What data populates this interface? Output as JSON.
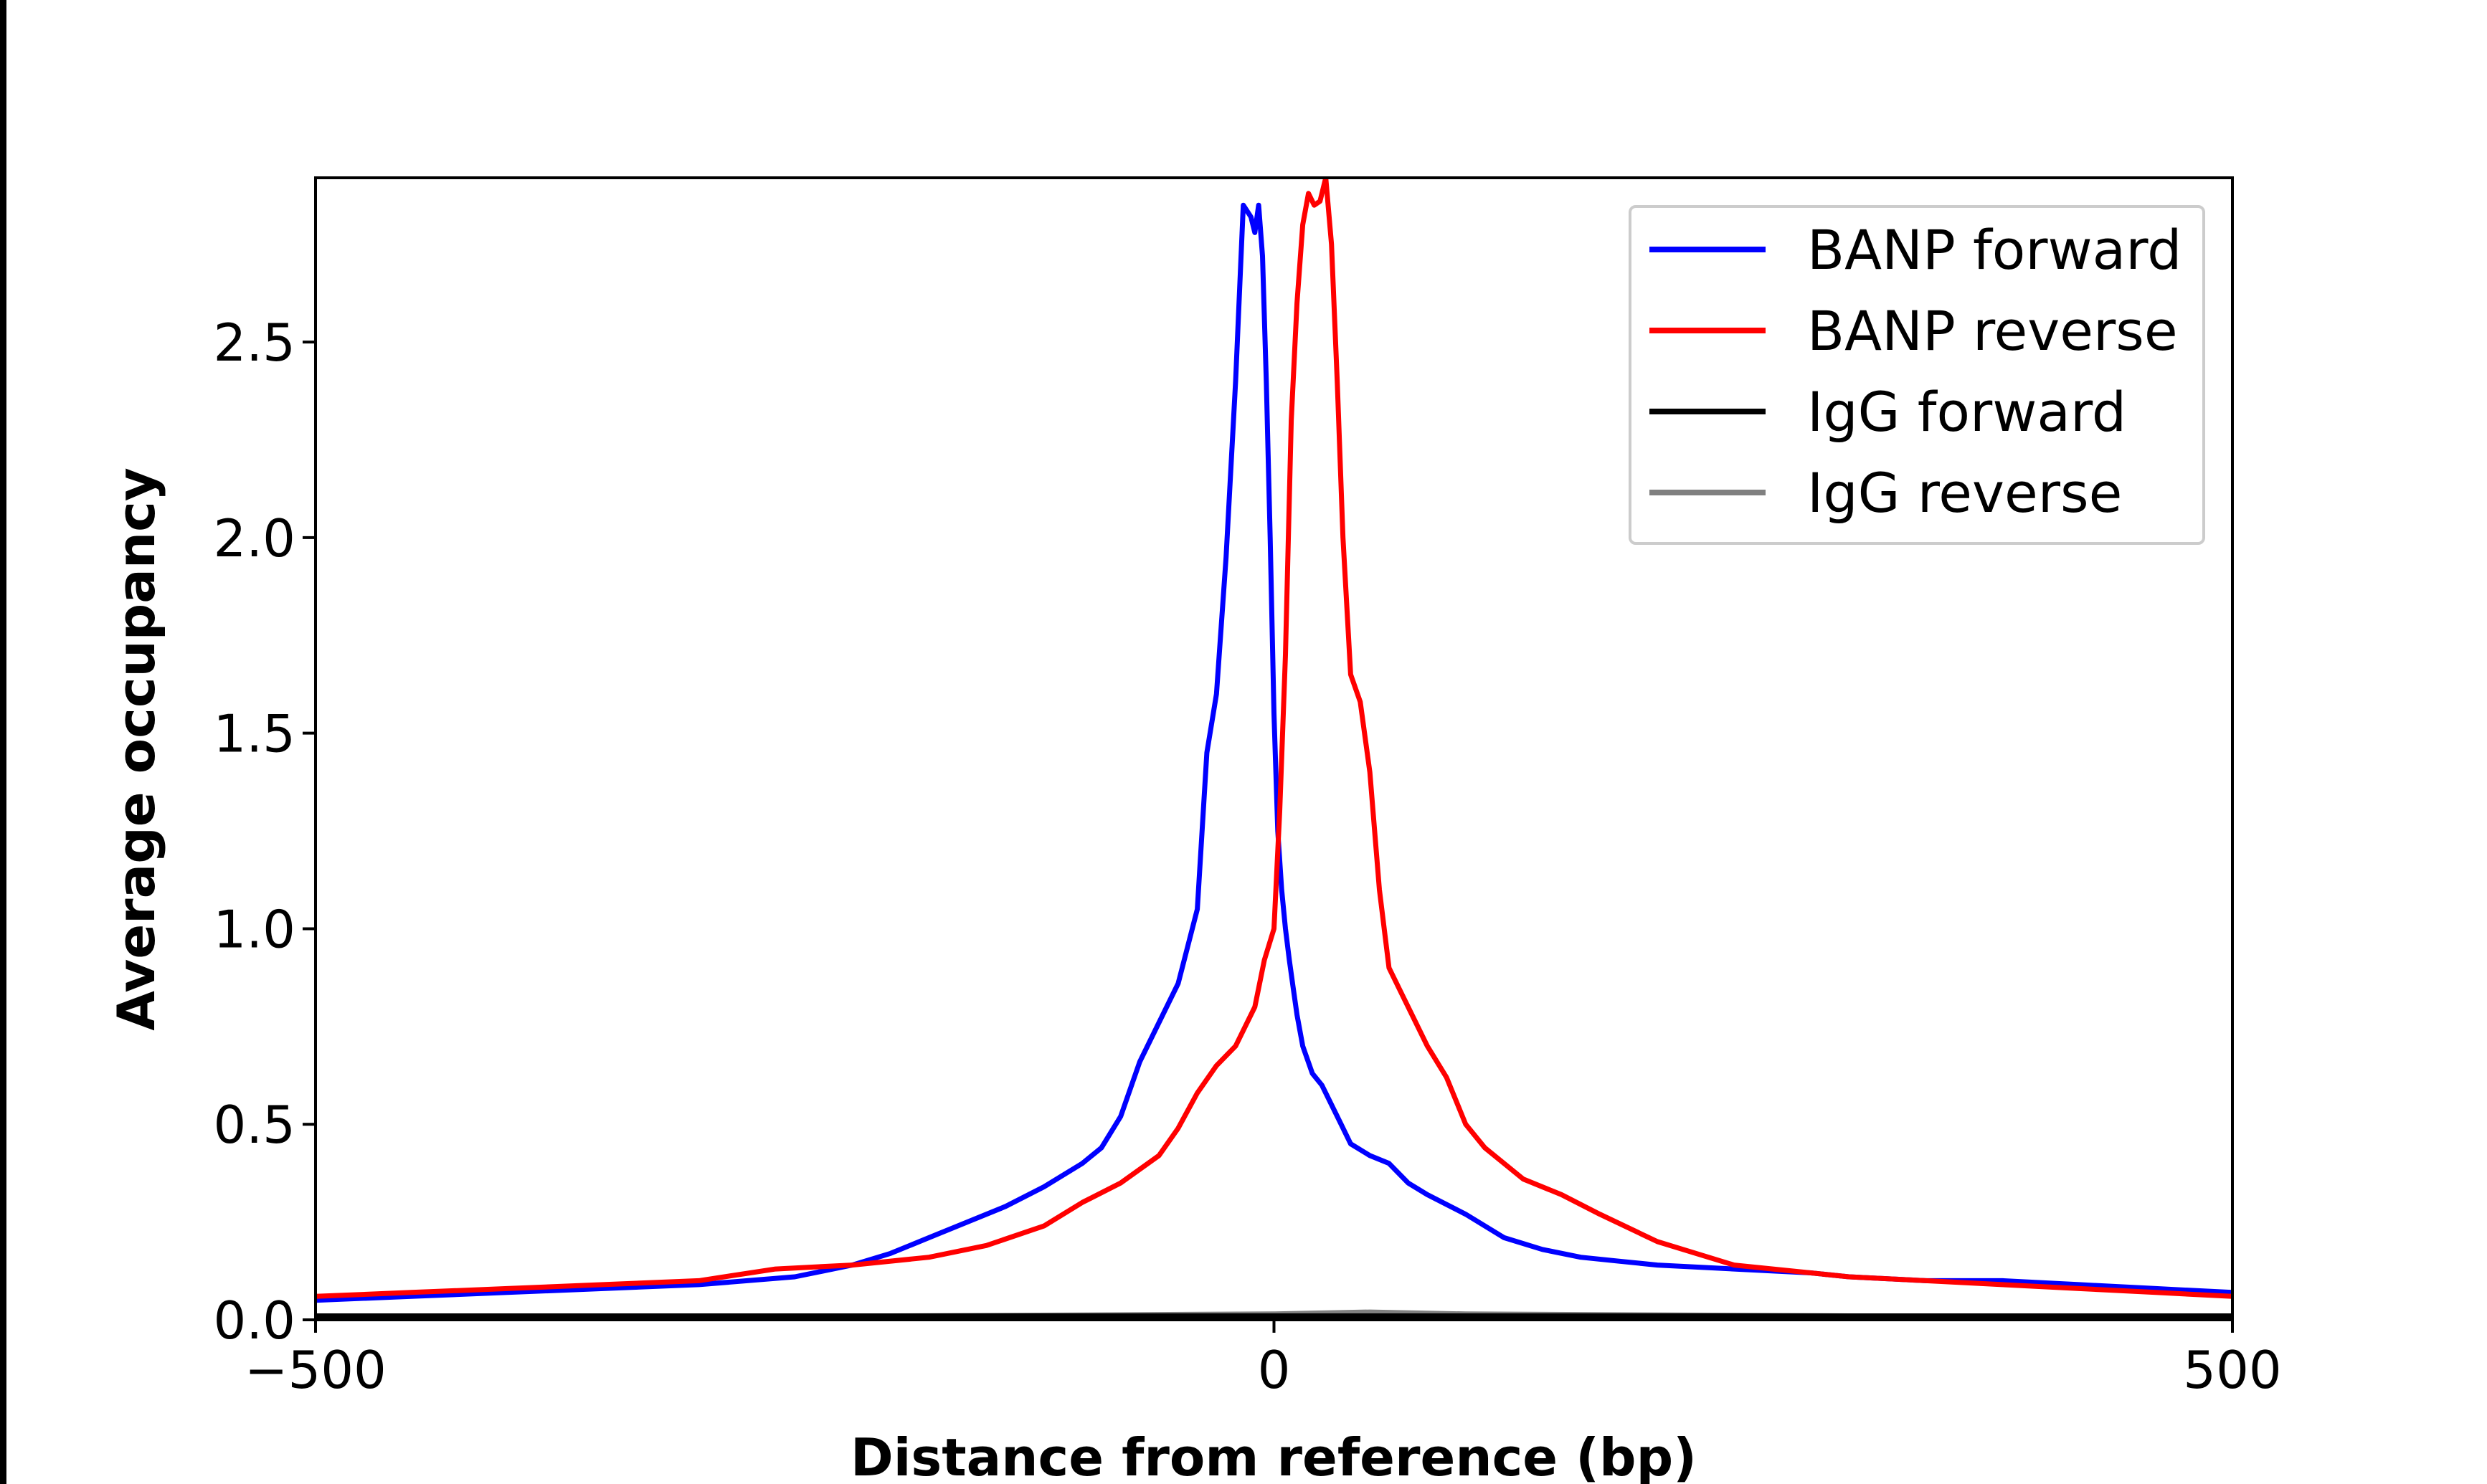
{
  "chart_data": {
    "type": "line",
    "xlabel": "Distance from reference (bp)",
    "ylabel": "Average occupancy",
    "xlim": [
      -500,
      500
    ],
    "ylim": [
      0,
      2.92
    ],
    "xticks": [
      -500,
      0,
      500
    ],
    "xtick_labels": [
      "−500",
      "0",
      "500"
    ],
    "yticks": [
      0.0,
      0.5,
      1.0,
      1.5,
      2.0,
      2.5
    ],
    "ytick_labels": [
      "0.0",
      "0.5",
      "1.0",
      "1.5",
      "2.0",
      "2.5"
    ],
    "grid": false,
    "legend_position": "top-right",
    "series": [
      {
        "name": "BANP forward",
        "color": "#0000ff",
        "x": [
          -500,
          -450,
          -400,
          -350,
          -300,
          -250,
          -220,
          -200,
          -180,
          -160,
          -140,
          -120,
          -100,
          -90,
          -80,
          -70,
          -60,
          -50,
          -40,
          -35,
          -30,
          -25,
          -20,
          -16,
          -12,
          -10,
          -8,
          -6,
          -4,
          -2,
          0,
          2,
          4,
          6,
          8,
          10,
          12,
          15,
          20,
          25,
          30,
          35,
          40,
          50,
          60,
          70,
          80,
          100,
          120,
          140,
          160,
          180,
          200,
          240,
          280,
          300,
          340,
          380,
          420,
          460,
          500
        ],
        "y": [
          0.05,
          0.06,
          0.07,
          0.08,
          0.09,
          0.11,
          0.14,
          0.17,
          0.21,
          0.25,
          0.29,
          0.34,
          0.4,
          0.44,
          0.52,
          0.66,
          0.76,
          0.86,
          1.05,
          1.45,
          1.6,
          1.95,
          2.4,
          2.85,
          2.82,
          2.78,
          2.85,
          2.72,
          2.4,
          2.0,
          1.55,
          1.25,
          1.1,
          1.0,
          0.92,
          0.85,
          0.78,
          0.7,
          0.63,
          0.6,
          0.55,
          0.5,
          0.45,
          0.42,
          0.4,
          0.35,
          0.32,
          0.27,
          0.21,
          0.18,
          0.16,
          0.15,
          0.14,
          0.13,
          0.12,
          0.11,
          0.1,
          0.1,
          0.09,
          0.08,
          0.07
        ]
      },
      {
        "name": "BANP reverse",
        "color": "#ff0000",
        "x": [
          -500,
          -450,
          -400,
          -350,
          -300,
          -260,
          -220,
          -180,
          -150,
          -120,
          -100,
          -80,
          -60,
          -50,
          -40,
          -30,
          -20,
          -10,
          -5,
          0,
          3,
          6,
          9,
          12,
          15,
          18,
          21,
          24,
          27,
          30,
          33,
          36,
          40,
          45,
          50,
          55,
          60,
          70,
          80,
          90,
          100,
          110,
          120,
          130,
          150,
          170,
          200,
          240,
          280,
          300,
          340,
          380,
          420,
          460,
          500
        ],
        "y": [
          0.06,
          0.07,
          0.08,
          0.09,
          0.1,
          0.13,
          0.14,
          0.16,
          0.19,
          0.24,
          0.3,
          0.35,
          0.42,
          0.49,
          0.58,
          0.65,
          0.7,
          0.8,
          0.92,
          1.0,
          1.3,
          1.7,
          2.3,
          2.6,
          2.8,
          2.88,
          2.85,
          2.86,
          2.92,
          2.75,
          2.4,
          2.0,
          1.65,
          1.58,
          1.4,
          1.1,
          0.9,
          0.8,
          0.7,
          0.62,
          0.5,
          0.44,
          0.4,
          0.36,
          0.32,
          0.27,
          0.2,
          0.14,
          0.12,
          0.11,
          0.1,
          0.09,
          0.08,
          0.07,
          0.06
        ]
      },
      {
        "name": "IgG forward",
        "color": "#000000",
        "x": [
          -500,
          500
        ],
        "y": [
          0.01,
          0.01
        ]
      },
      {
        "name": "IgG reverse",
        "color": "#808080",
        "x": [
          -500,
          -200,
          0,
          50,
          100,
          300,
          500
        ],
        "y": [
          0.01,
          0.01,
          0.015,
          0.02,
          0.015,
          0.01,
          0.01
        ]
      }
    ]
  }
}
